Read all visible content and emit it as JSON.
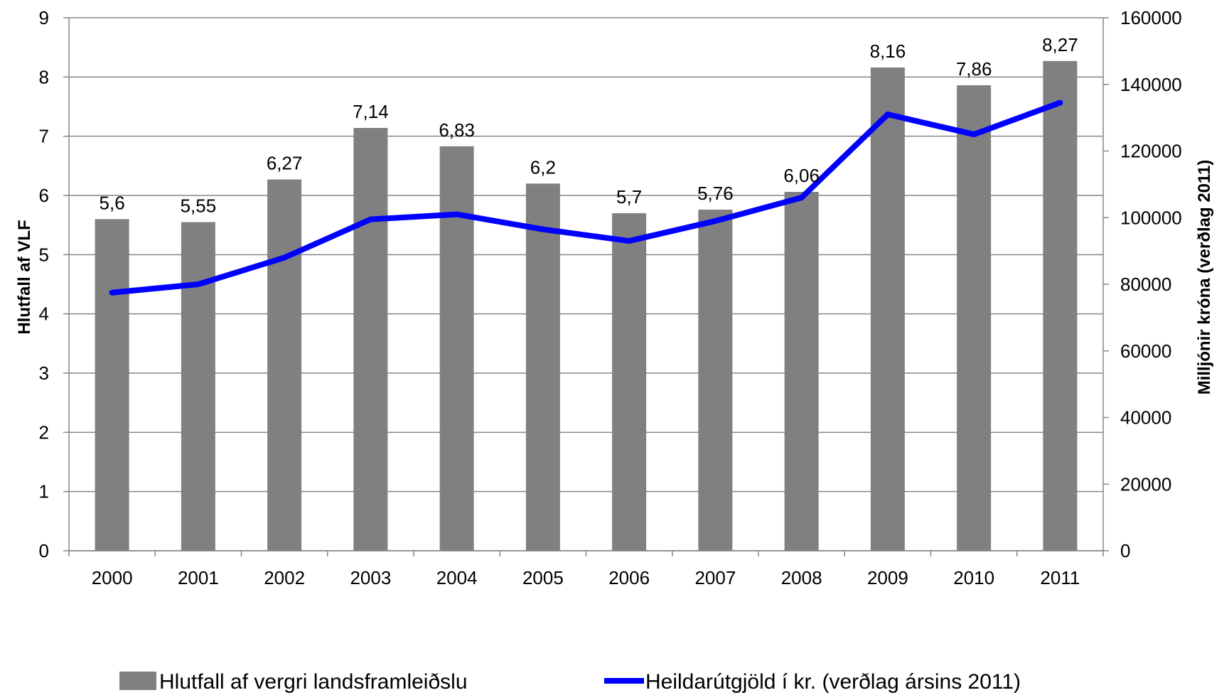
{
  "chart_data": {
    "type": "bar",
    "categories": [
      "2000",
      "2001",
      "2002",
      "2003",
      "2004",
      "2005",
      "2006",
      "2007",
      "2008",
      "2009",
      "2010",
      "2011"
    ],
    "series": [
      {
        "name": "Hlutfall af vergri landsframleiðslu",
        "kind": "bar",
        "axis": "left",
        "color": "#808080",
        "values": [
          5.6,
          5.55,
          6.27,
          7.14,
          6.83,
          6.2,
          5.7,
          5.76,
          6.06,
          8.16,
          7.86,
          8.27
        ],
        "data_labels": [
          "5,6",
          "5,55",
          "6,27",
          "7,14",
          "6,83",
          "6,2",
          "5,7",
          "5,76",
          "6,06",
          "8,16",
          "7,86",
          "8,27"
        ]
      },
      {
        "name": "Heildarútgjöld í kr. (verðlag ársins 2011)",
        "kind": "line",
        "axis": "right",
        "color": "#0000ff",
        "values": [
          77500,
          80000,
          88000,
          99500,
          101000,
          96500,
          93000,
          99000,
          106000,
          131000,
          125000,
          134500
        ]
      }
    ],
    "ylabel": "Hlutfall af VLF",
    "y2label": "Milljónir króna (verðlag 2011)",
    "ylim": [
      0,
      9
    ],
    "y2lim": [
      0,
      160000
    ],
    "yticks": [
      "0",
      "1",
      "2",
      "3",
      "4",
      "5",
      "6",
      "7",
      "8",
      "9"
    ],
    "y2ticks": [
      "0",
      "20000",
      "40000",
      "60000",
      "80000",
      "100000",
      "120000",
      "140000",
      "160000"
    ],
    "grid": true,
    "legend": "bottom"
  }
}
